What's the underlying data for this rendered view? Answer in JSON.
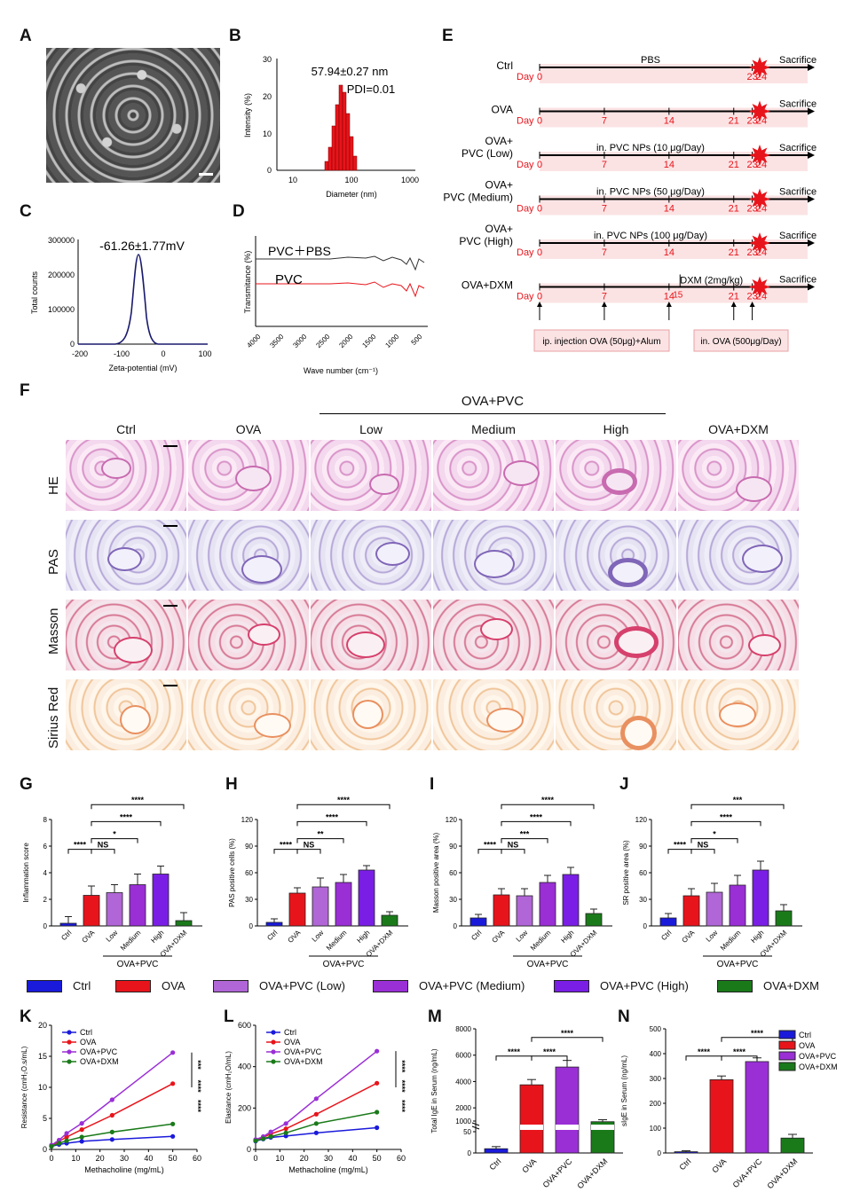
{
  "panels": {
    "A": "A",
    "B": "B",
    "C": "C",
    "D": "D",
    "E": "E",
    "F": "F",
    "G": "G",
    "H": "H",
    "I": "I",
    "J": "J",
    "K": "K",
    "L": "L",
    "M": "M",
    "N": "N"
  },
  "colors": {
    "ctrl": "#1a1adb",
    "ova": "#e8141b",
    "low": "#b066d6",
    "medium": "#9a2fd6",
    "high": "#7a1ee6",
    "dxm": "#1a7a1a"
  },
  "panel_b": {
    "size_text": "57.94±0.27 nm",
    "pdi_text": "PDI=0.01",
    "xlabel": "Diameter (nm)",
    "ylabel": "Intensity (%)",
    "yticks": [
      "0",
      "10",
      "20",
      "30"
    ],
    "xticks": [
      "10",
      "100",
      "1000"
    ]
  },
  "panel_c": {
    "zeta_text": "-61.26±1.77mV",
    "xlabel": "Zeta-potential (mV)",
    "ylabel": "Total counts",
    "yticks": [
      "0",
      "100000",
      "200000",
      "300000"
    ],
    "xticks": [
      "-200",
      "-100",
      "0",
      "100"
    ]
  },
  "panel_d": {
    "label1": "PVC＋PBS",
    "label2": "PVC",
    "ylabel": "Transmitance (%)",
    "xlabel": "Wave number (cm⁻¹)",
    "xticks": [
      "4000",
      "3500",
      "3000",
      "2500",
      "2000",
      "1500",
      "1000",
      "500"
    ]
  },
  "panel_e": {
    "rows": [
      {
        "label1": "",
        "label2": "Ctrl",
        "above": "PBS",
        "days": [
          "0",
          "23",
          "24"
        ]
      },
      {
        "label1": "",
        "label2": "OVA",
        "above": "",
        "days": [
          "0",
          "7",
          "14",
          "21",
          "23",
          "24"
        ]
      },
      {
        "label1": "OVA+",
        "label2": "PVC (Low)",
        "above": "in. PVC NPs (10 μg/Day)",
        "days": [
          "0",
          "7",
          "14",
          "21",
          "23",
          "24"
        ]
      },
      {
        "label1": "OVA+",
        "label2": "PVC (Medium)",
        "above": "in. PVC NPs (50 μg/Day)",
        "days": [
          "0",
          "7",
          "14",
          "21",
          "23",
          "24"
        ]
      },
      {
        "label1": "OVA+",
        "label2": "PVC (High)",
        "above": "in. PVC NPs (100 μg/Day)",
        "days": [
          "0",
          "7",
          "14",
          "21",
          "23",
          "24"
        ]
      },
      {
        "label1": "",
        "label2": "OVA+DXM",
        "above": "",
        "days": [
          "0",
          "7",
          "14",
          "21",
          "23",
          "24"
        ]
      }
    ],
    "day_word": "Day",
    "sacrifice": "Sacrifice",
    "dxm_text": "DXM (2mg/kg)",
    "dxm_day": "15",
    "ip_text": "ip. injection OVA (50μg)+Alum",
    "in_text": "in. OVA (500μg/Day)"
  },
  "panel_f": {
    "group_header": "OVA+PVC",
    "columns": [
      "Ctrl",
      "OVA",
      "Low",
      "Medium",
      "High",
      "OVA+DXM"
    ],
    "rows": [
      "HE",
      "PAS",
      "Masson",
      "Sirius Red"
    ]
  },
  "bar_panels": [
    {
      "id": "G",
      "ylabel": "Inflammation score",
      "yticks": [
        "0",
        "2",
        "4",
        "6",
        "8"
      ],
      "ymax": 8,
      "values": [
        0.2,
        2.3,
        2.5,
        3.1,
        3.9,
        0.4
      ],
      "errors": [
        0.5,
        0.7,
        0.6,
        0.8,
        0.6,
        0.6
      ],
      "sig": [
        "****",
        "NS",
        "*",
        "****",
        "****"
      ]
    },
    {
      "id": "H",
      "ylabel": "PAS positive cells (%)",
      "yticks": [
        "0",
        "30",
        "60",
        "90",
        "120"
      ],
      "ymax": 120,
      "values": [
        4,
        37,
        44,
        49,
        63,
        12
      ],
      "errors": [
        4,
        6,
        10,
        9,
        5,
        4
      ],
      "sig": [
        "****",
        "NS",
        "**",
        "****",
        "****"
      ]
    },
    {
      "id": "I",
      "ylabel": "Masson positive area (%)",
      "yticks": [
        "0",
        "30",
        "60",
        "90",
        "120"
      ],
      "ymax": 120,
      "values": [
        9,
        35,
        34,
        49,
        58,
        14
      ],
      "errors": [
        4,
        7,
        8,
        8,
        8,
        5
      ],
      "sig": [
        "****",
        "NS",
        "***",
        "****",
        "****"
      ]
    },
    {
      "id": "J",
      "ylabel": "SR positive area (%)",
      "yticks": [
        "0",
        "30",
        "60",
        "90",
        "120"
      ],
      "ymax": 120,
      "values": [
        9,
        34,
        38,
        46,
        63,
        17
      ],
      "errors": [
        5,
        8,
        10,
        11,
        10,
        7
      ],
      "sig": [
        "****",
        "NS",
        "*",
        "****",
        "***"
      ]
    }
  ],
  "bar_xlabels": [
    "Ctrl",
    "OVA",
    "Low",
    "Medium",
    "High",
    "OVA+DXM"
  ],
  "bar_group": "OVA+PVC",
  "legend": [
    "Ctrl",
    "OVA",
    "OVA+PVC (Low)",
    "OVA+PVC (Medium)",
    "OVA+PVC (High)",
    "OVA+DXM"
  ],
  "chart_data": [
    {
      "type": "line",
      "panel": "K",
      "xlabel": "Methacholine (mg/mL)",
      "ylabel": "Resistance (cmH₂O.s/mL)",
      "xlim": [
        0,
        60
      ],
      "ylim": [
        0,
        20
      ],
      "x": [
        0,
        3.125,
        6.25,
        12.5,
        25,
        50
      ],
      "series": [
        {
          "name": "Ctrl",
          "values": [
            0.5,
            0.8,
            1.0,
            1.3,
            1.6,
            2.1
          ]
        },
        {
          "name": "OVA",
          "values": [
            0.6,
            1.3,
            2.0,
            3.2,
            5.5,
            10.6
          ]
        },
        {
          "name": "OVA+PVC",
          "values": [
            0.7,
            1.5,
            2.6,
            4.2,
            8.0,
            15.6
          ]
        },
        {
          "name": "OVA+DXM",
          "values": [
            0.5,
            1.0,
            1.4,
            2.0,
            2.8,
            4.1
          ]
        }
      ],
      "sig": [
        "***",
        "****",
        "****"
      ]
    },
    {
      "type": "line",
      "panel": "L",
      "xlabel": "Methacholine (mg/mL)",
      "ylabel": "Elastance (cmH₂O/mL)",
      "xlim": [
        0,
        60
      ],
      "ylim": [
        0,
        600
      ],
      "x": [
        0,
        3.125,
        6.25,
        12.5,
        25,
        50
      ],
      "series": [
        {
          "name": "Ctrl",
          "values": [
            40,
            50,
            58,
            65,
            80,
            105
          ]
        },
        {
          "name": "OVA",
          "values": [
            45,
            58,
            75,
            100,
            170,
            320
          ]
        },
        {
          "name": "OVA+PVC",
          "values": [
            48,
            62,
            85,
            125,
            245,
            475
          ]
        },
        {
          "name": "OVA+DXM",
          "values": [
            42,
            52,
            62,
            80,
            125,
            180
          ]
        }
      ],
      "sig": [
        "****",
        "****",
        "****"
      ]
    },
    {
      "type": "bar",
      "panel": "M",
      "ylabel": "Total IgE in Serum (ng/mL)",
      "categories": [
        "Ctrl",
        "OVA",
        "OVA+PVC",
        "OVA+DXM"
      ],
      "values": [
        10,
        3750,
        5100,
        950
      ],
      "errors": [
        5,
        400,
        500,
        150
      ],
      "yticks": [
        "0",
        "50",
        "1000",
        "2000",
        "4000",
        "6000",
        "8000"
      ],
      "sig": [
        "****",
        "****",
        "****"
      ]
    },
    {
      "type": "bar",
      "panel": "N",
      "ylabel": "sIgE in Serum (ng/mL)",
      "categories": [
        "Ctrl",
        "OVA",
        "OVA+PVC",
        "OVA+DXM"
      ],
      "values": [
        5,
        295,
        368,
        60
      ],
      "errors": [
        4,
        15,
        15,
        15
      ],
      "ylim": [
        0,
        500
      ],
      "yticks": [
        "0",
        "100",
        "200",
        "300",
        "400",
        "500"
      ],
      "sig": [
        "****",
        "****",
        "****"
      ]
    }
  ],
  "mn_legend": [
    "Ctrl",
    "OVA",
    "OVA+PVC",
    "OVA+DXM"
  ],
  "kl_xticks": [
    "0",
    "10",
    "20",
    "30",
    "40",
    "50",
    "60"
  ],
  "k_yticks": [
    "0",
    "5",
    "10",
    "15",
    "20"
  ],
  "l_yticks": [
    "0",
    "200",
    "400",
    "600"
  ]
}
